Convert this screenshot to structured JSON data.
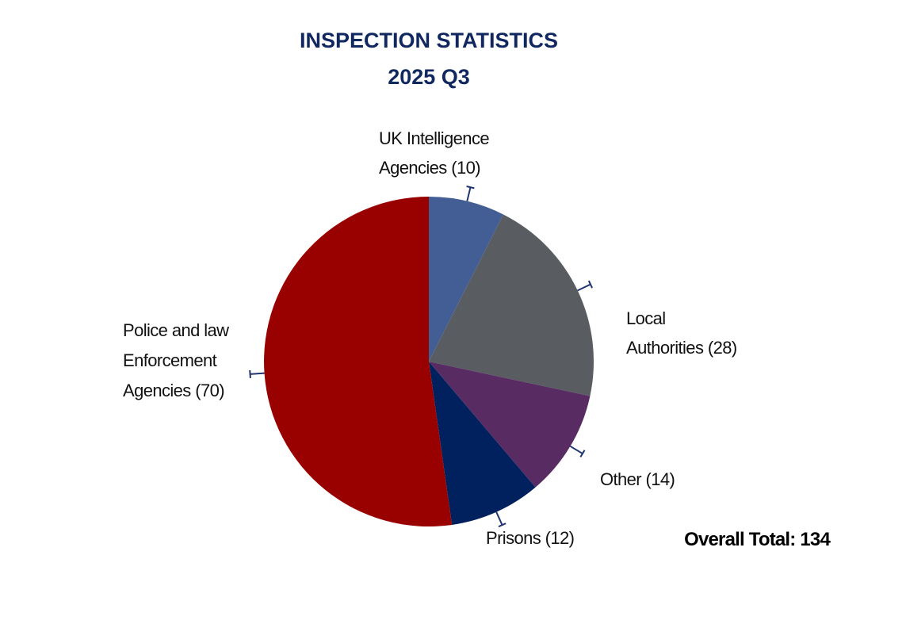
{
  "chart_data": {
    "type": "pie",
    "title": [
      "INSPECTION STATISTICS",
      "2025 Q3"
    ],
    "slices": [
      {
        "label": [
          "UK Intelligence",
          "Agencies (10)"
        ],
        "value": 10,
        "color": "#435E95"
      },
      {
        "label": [
          "Local",
          "Authorities (28)"
        ],
        "value": 28,
        "color": "#595C60"
      },
      {
        "label": [
          "Other (14)"
        ],
        "value": 14,
        "color": "#582C63"
      },
      {
        "label": [
          "Prisons (12)"
        ],
        "value": 12,
        "color": "#00205E"
      },
      {
        "label": [
          "Police and law",
          "Enforcement",
          "Agencies (70)"
        ],
        "value": 70,
        "color": "#990000"
      }
    ],
    "overall_total": "Overall Total: 134",
    "start": "12 o'clock",
    "direction": "clockwise",
    "colors": {
      "title": "#10285F",
      "text": "#111111",
      "leader": "#1F3470"
    }
  }
}
